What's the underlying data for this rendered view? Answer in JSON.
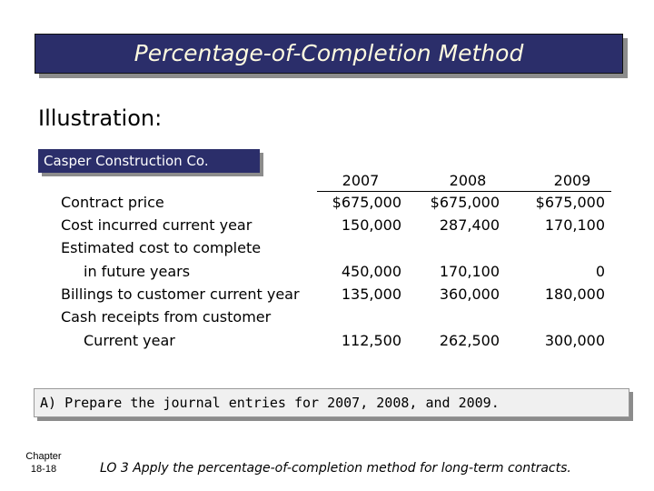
{
  "header": {
    "title": "Percentage-of-Completion Method",
    "subtitle": "Illustration:"
  },
  "company": "Casper Construction Co.",
  "table": {
    "columns": [
      "2007",
      "2008",
      "2009"
    ],
    "rows": [
      {
        "label": "Contract price",
        "values": [
          "$675,000",
          "$675,000",
          "$675,000"
        ]
      },
      {
        "label": "Cost incurred current year",
        "values": [
          "150,000",
          "287,400",
          "170,100"
        ]
      },
      {
        "label": "Estimated cost to complete"
      },
      {
        "label": "in future years",
        "values": [
          "450,000",
          "170,100",
          "0"
        ]
      },
      {
        "label": "Billings to customer current year",
        "values": [
          "135,000",
          "360,000",
          "180,000"
        ]
      },
      {
        "label": "Cash receipts from customer"
      },
      {
        "label": "Current year",
        "values": [
          "112,500",
          "262,500",
          "300,000"
        ]
      }
    ]
  },
  "task": "A)  Prepare the journal entries for 2007, 2008, and 2009.",
  "footer": {
    "chapter": "Chapter",
    "page": "18-18",
    "objective": "LO 3 Apply the percentage-of-completion method for long-term contracts."
  }
}
